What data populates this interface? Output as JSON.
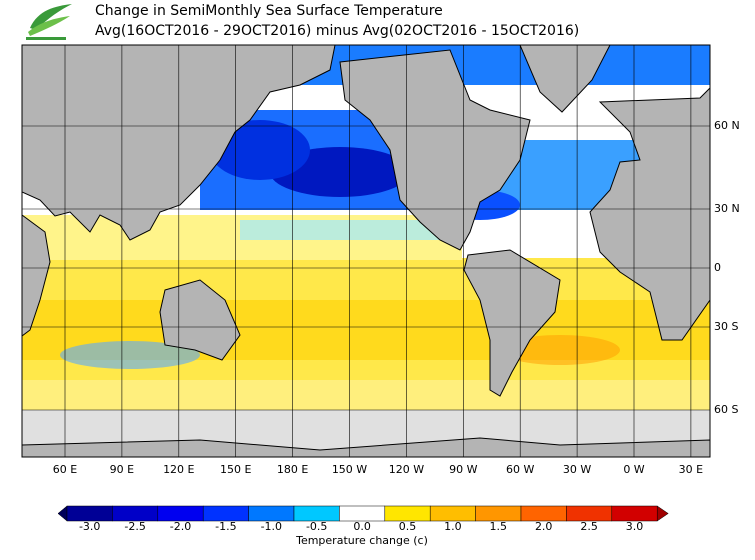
{
  "title": "Change in SemiMonthly Sea Surface Temperature",
  "subtitle": "Avg(16OCT2016 - 29OCT2016) minus Avg(02OCT2016 - 15OCT2016)",
  "map": {
    "lat_labels": [
      "60 N",
      "30 N",
      "0",
      "30 S",
      "60 S"
    ],
    "lon_labels": [
      "60 E",
      "90 E",
      "120 E",
      "150 E",
      "180 E",
      "150 W",
      "120 W",
      "90 W",
      "60 W",
      "30 W",
      "0 W",
      "30 E"
    ]
  },
  "colorbar": {
    "label": "Temperature change  (c)",
    "under_color": "#00005a",
    "over_color": "#a00000",
    "colors": [
      "#000096",
      "#0000c8",
      "#0000f0",
      "#0032ff",
      "#0078ff",
      "#00c8ff",
      "#ffffff",
      "#ffe600",
      "#ffbe00",
      "#ff9600",
      "#ff6400",
      "#f03200",
      "#d20000"
    ],
    "ticks": [
      {
        "value": -3,
        "label": "-3.0"
      },
      {
        "value": -2.5,
        "label": "-2.5"
      },
      {
        "value": -2,
        "label": "-2.0"
      },
      {
        "value": -1.5,
        "label": "-1.5"
      },
      {
        "value": -1,
        "label": "-1.0"
      },
      {
        "value": -0.5,
        "label": "-0.5"
      },
      {
        "value": 0,
        "label": "0.0"
      },
      {
        "value": 0.5,
        "label": "0.5"
      },
      {
        "value": 1,
        "label": "1.0"
      },
      {
        "value": 1.5,
        "label": "1.5"
      },
      {
        "value": 2,
        "label": "2.0"
      },
      {
        "value": 2.5,
        "label": "2.5"
      },
      {
        "value": 3,
        "label": "3.0"
      }
    ]
  }
}
